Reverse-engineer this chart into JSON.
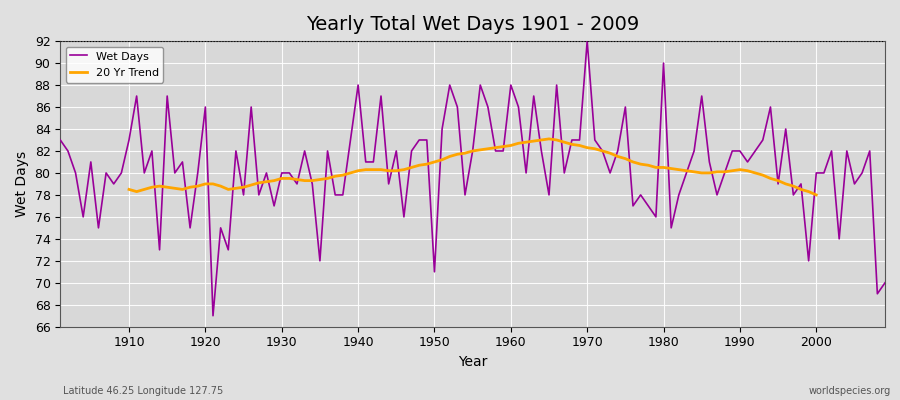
{
  "title": "Yearly Total Wet Days 1901 - 2009",
  "xlabel": "Year",
  "ylabel": "Wet Days",
  "lat_lon_label": "Latitude 46.25 Longitude 127.75",
  "watermark": "worldspecies.org",
  "wet_days_color": "#990099",
  "trend_color": "#FFA500",
  "ylim": [
    66,
    92
  ],
  "xlim": [
    1901,
    2009
  ],
  "years": [
    1901,
    1902,
    1903,
    1904,
    1905,
    1906,
    1907,
    1908,
    1909,
    1910,
    1911,
    1912,
    1913,
    1914,
    1915,
    1916,
    1917,
    1918,
    1919,
    1920,
    1921,
    1922,
    1923,
    1924,
    1925,
    1926,
    1927,
    1928,
    1929,
    1930,
    1931,
    1932,
    1933,
    1934,
    1935,
    1936,
    1937,
    1938,
    1939,
    1940,
    1941,
    1942,
    1943,
    1944,
    1945,
    1946,
    1947,
    1948,
    1949,
    1950,
    1951,
    1952,
    1953,
    1954,
    1955,
    1956,
    1957,
    1958,
    1959,
    1960,
    1961,
    1962,
    1963,
    1964,
    1965,
    1966,
    1967,
    1968,
    1969,
    1970,
    1971,
    1972,
    1973,
    1974,
    1975,
    1976,
    1977,
    1978,
    1979,
    1980,
    1981,
    1982,
    1983,
    1984,
    1985,
    1986,
    1987,
    1988,
    1989,
    1990,
    1991,
    1992,
    1993,
    1994,
    1995,
    1996,
    1997,
    1998,
    1999,
    2000,
    2001,
    2002,
    2003,
    2004,
    2005,
    2006,
    2007,
    2008,
    2009
  ],
  "wet_days": [
    83,
    82,
    80,
    76,
    81,
    75,
    80,
    79,
    80,
    83,
    87,
    80,
    82,
    73,
    87,
    80,
    81,
    75,
    80,
    86,
    67,
    75,
    73,
    82,
    78,
    86,
    78,
    80,
    77,
    80,
    80,
    79,
    82,
    79,
    72,
    82,
    78,
    78,
    83,
    88,
    81,
    81,
    87,
    79,
    82,
    76,
    82,
    83,
    83,
    71,
    84,
    88,
    86,
    78,
    82,
    88,
    86,
    82,
    82,
    88,
    86,
    80,
    87,
    82,
    78,
    88,
    80,
    83,
    83,
    92,
    83,
    82,
    80,
    82,
    86,
    77,
    78,
    77,
    76,
    90,
    75,
    78,
    80,
    82,
    87,
    81,
    78,
    80,
    82,
    82,
    81,
    82,
    83,
    86,
    79,
    84,
    78,
    79,
    72,
    80,
    80,
    82,
    74,
    82,
    79,
    80,
    82,
    69,
    70
  ],
  "trend_years": [
    1910,
    1911,
    1912,
    1913,
    1914,
    1915,
    1916,
    1917,
    1918,
    1919,
    1920,
    1921,
    1922,
    1923,
    1924,
    1925,
    1926,
    1927,
    1928,
    1929,
    1930,
    1931,
    1932,
    1933,
    1934,
    1935,
    1936,
    1937,
    1938,
    1939,
    1940,
    1941,
    1942,
    1943,
    1944,
    1945,
    1946,
    1947,
    1948,
    1949,
    1950,
    1951,
    1952,
    1953,
    1954,
    1955,
    1956,
    1957,
    1958,
    1959,
    1960,
    1961,
    1962,
    1963,
    1964,
    1965,
    1966,
    1967,
    1968,
    1969,
    1970,
    1971,
    1972,
    1973,
    1974,
    1975,
    1976,
    1977,
    1978,
    1979,
    1980,
    1981,
    1982,
    1983,
    1984,
    1985,
    1986,
    1987,
    1988,
    1989,
    1990,
    1991,
    1992,
    1993,
    1994,
    1995,
    1996,
    1997,
    1998,
    1999,
    2000
  ],
  "trend_values": [
    78.5,
    78.3,
    78.5,
    78.7,
    78.8,
    78.7,
    78.6,
    78.5,
    78.7,
    78.8,
    79.0,
    79.0,
    78.8,
    78.5,
    78.6,
    78.7,
    78.9,
    79.1,
    79.2,
    79.3,
    79.5,
    79.5,
    79.4,
    79.3,
    79.3,
    79.4,
    79.5,
    79.7,
    79.8,
    80.0,
    80.2,
    80.3,
    80.3,
    80.3,
    80.2,
    80.2,
    80.3,
    80.5,
    80.7,
    80.8,
    81.0,
    81.2,
    81.5,
    81.7,
    81.8,
    82.0,
    82.1,
    82.2,
    82.3,
    82.4,
    82.5,
    82.7,
    82.8,
    82.9,
    83.0,
    83.1,
    83.0,
    82.8,
    82.6,
    82.5,
    82.3,
    82.2,
    82.0,
    81.8,
    81.5,
    81.3,
    81.0,
    80.8,
    80.7,
    80.5,
    80.5,
    80.4,
    80.3,
    80.2,
    80.1,
    80.0,
    80.0,
    80.1,
    80.1,
    80.2,
    80.3,
    80.2,
    80.0,
    79.8,
    79.5,
    79.3,
    79.0,
    78.8,
    78.5,
    78.3,
    78.0
  ]
}
